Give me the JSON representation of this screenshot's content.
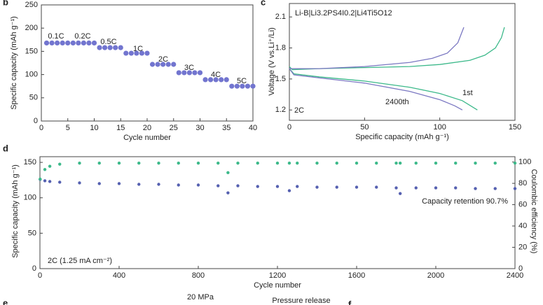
{
  "chart_data": [
    {
      "type": "scatter",
      "panel": "b",
      "x_label": "Cycle number",
      "y_label": "Specific capacity (mAh g⁻¹)",
      "x": [
        1,
        2,
        3,
        4,
        5,
        6,
        7,
        8,
        9,
        10,
        11,
        12,
        13,
        14,
        15,
        16,
        17,
        18,
        19,
        20,
        21,
        22,
        23,
        24,
        25,
        26,
        27,
        28,
        29,
        30,
        31,
        32,
        33,
        34,
        35,
        36,
        37,
        38,
        39,
        40
      ],
      "series": [
        {
          "name": "Capacity",
          "color": "#7275cf",
          "values": [
            168,
            168,
            168,
            168,
            168,
            168,
            168,
            168,
            168,
            168,
            158,
            158,
            158,
            158,
            158,
            146,
            146,
            146,
            146,
            146,
            122,
            122,
            122,
            122,
            122,
            104,
            104,
            104,
            104,
            104,
            89,
            89,
            89,
            89,
            89,
            75,
            75,
            75,
            75,
            75
          ]
        }
      ],
      "annotations": [
        "0.1C",
        "0.2C",
        "0.5C",
        "1C",
        "2C",
        "3C",
        "4C",
        "5C"
      ],
      "xlim": [
        0,
        40
      ],
      "xticks": [
        0,
        5,
        10,
        15,
        20,
        25,
        30,
        35,
        40
      ],
      "ylim": [
        0,
        250
      ],
      "yticks": [
        0,
        50,
        100,
        150,
        200,
        250
      ]
    },
    {
      "type": "line",
      "panel": "c",
      "title": "Li-B|Li3.2PS4I0.2|Li4Ti5O12",
      "x_label": "Specific capacity (mAh g⁻¹)",
      "y_label": "Voltage (V vs.Li⁺/Li)",
      "series": [
        {
          "name": "1st charge",
          "color": "#3cb98a",
          "x": [
            0,
            2,
            20,
            50,
            80,
            100,
            120,
            130,
            137,
            141,
            143
          ],
          "values": [
            1.62,
            1.59,
            1.6,
            1.61,
            1.62,
            1.64,
            1.68,
            1.73,
            1.8,
            1.9,
            2.0
          ]
        },
        {
          "name": "1st discharge",
          "color": "#3cb98a",
          "x": [
            0,
            3,
            20,
            50,
            80,
            100,
            115,
            125
          ],
          "values": [
            1.6,
            1.55,
            1.52,
            1.48,
            1.42,
            1.36,
            1.29,
            1.2
          ]
        },
        {
          "name": "2400th charge",
          "color": "#7b78c2",
          "x": [
            0,
            20,
            50,
            80,
            95,
            105,
            112,
            116
          ],
          "values": [
            1.6,
            1.6,
            1.62,
            1.66,
            1.7,
            1.75,
            1.85,
            2.0
          ]
        },
        {
          "name": "2400th discharge",
          "color": "#7b78c2",
          "x": [
            0,
            3,
            20,
            50,
            80,
            100,
            110,
            115
          ],
          "values": [
            1.6,
            1.54,
            1.51,
            1.46,
            1.38,
            1.3,
            1.24,
            1.2
          ]
        }
      ],
      "annotations": [
        "1st",
        "2400th",
        "2C"
      ],
      "xlim": [
        0,
        150
      ],
      "xticks": [
        0,
        50,
        100,
        150
      ],
      "ylim": [
        1.1,
        2.23
      ],
      "yticks": [
        1.2,
        1.5,
        1.8,
        2.1
      ]
    },
    {
      "type": "scatter",
      "panel": "d",
      "x_label": "Cycle number",
      "y_label": "Specific capacity (mAh g⁻¹)",
      "y2_label": "Coulombic efficiency (%)",
      "x": [
        1,
        25,
        50,
        100,
        200,
        300,
        400,
        500,
        600,
        700,
        800,
        900,
        950,
        1000,
        1100,
        1200,
        1260,
        1300,
        1400,
        1500,
        1600,
        1700,
        1800,
        1820,
        1900,
        2000,
        2100,
        2200,
        2300,
        2400
      ],
      "series": [
        {
          "name": "Specific capacity",
          "color": "#5560b0",
          "values": [
            126,
            124,
            123,
            122,
            121,
            120,
            120,
            119,
            119,
            118,
            118,
            117,
            107,
            117,
            116,
            116,
            110,
            116,
            115,
            115,
            115,
            115,
            114,
            106,
            114,
            114,
            114,
            113,
            113,
            113
          ]
        },
        {
          "name": "Coulombic efficiency",
          "color": "#3cb98a",
          "axis": "y2",
          "values": [
            84,
            93,
            96,
            98,
            99,
            99,
            99,
            99,
            99,
            99,
            99,
            99,
            90,
            99,
            99,
            99,
            99,
            99,
            99,
            99,
            99,
            99,
            99,
            99,
            99,
            99,
            99,
            99,
            99,
            99
          ]
        }
      ],
      "annotations": [
        "Capacity retention 90.7%",
        "2C (1.25 mA cm⁻²)"
      ],
      "xlim": [
        0,
        2400
      ],
      "xticks": [
        0,
        400,
        800,
        1200,
        1600,
        2000,
        2400
      ],
      "ylim": [
        0,
        158
      ],
      "yticks": [
        0,
        50,
        100,
        150
      ],
      "y2lim": [
        0,
        105
      ],
      "y2ticks": [
        0,
        20,
        40,
        60,
        80,
        100
      ]
    }
  ],
  "bottom_fragments": {
    "labels": [
      "e",
      "f"
    ],
    "texts": [
      "20 MPa",
      "Pressure release"
    ]
  }
}
